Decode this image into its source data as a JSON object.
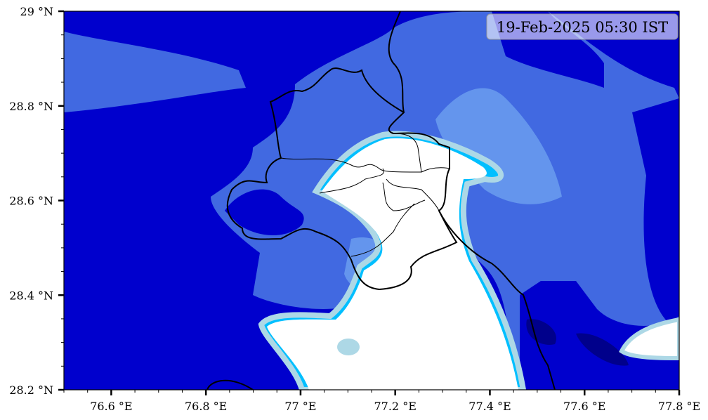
{
  "timestamp_label": "19-Feb-2025 05:30 IST",
  "x_ticks": [
    "76.6 °E",
    "76.8 °E",
    "77 °E",
    "77.2 °E",
    "77.4 °E",
    "77.6 °E",
    "77.8 °E"
  ],
  "x_tick_values": [
    76.6,
    76.8,
    77.0,
    77.2,
    77.4,
    77.6,
    77.8
  ],
  "y_ticks": [
    "29 °N",
    "28.8 °N",
    "28.6 °N",
    "28.4 °N",
    "28.2 °N"
  ],
  "y_tick_values": [
    29.0,
    28.8,
    28.6,
    28.4,
    28.2
  ],
  "extent": {
    "lon": [
      76.5,
      77.8
    ],
    "lat": [
      28.2,
      29.0
    ]
  },
  "colors": {
    "level1": "#0000cd",
    "level2": "#4169e1",
    "level3": "#6495ed",
    "level4": "#00bfff",
    "level5": "#add8e6",
    "level6": "#ffffff",
    "level0": "#00008b",
    "boundary": "#000000"
  }
}
